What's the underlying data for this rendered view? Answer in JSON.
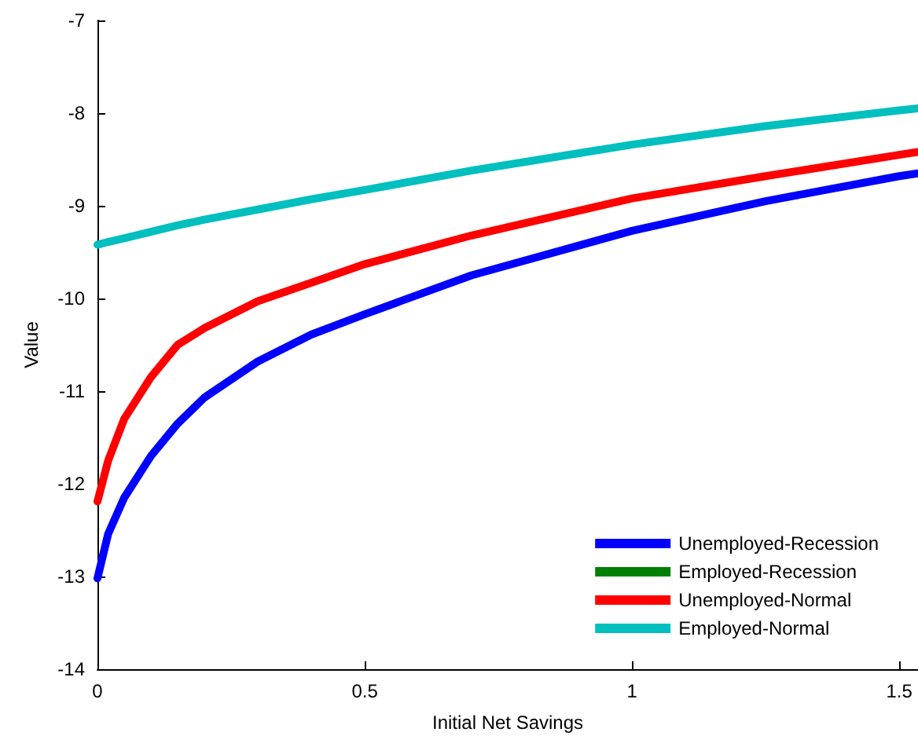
{
  "chart_data": {
    "type": "line",
    "xlabel": "Initial Net Savings",
    "ylabel": "Value",
    "x": [
      0,
      0.02,
      0.05,
      0.1,
      0.15,
      0.2,
      0.3,
      0.4,
      0.5,
      0.7,
      1.0,
      1.25,
      1.5,
      1.535
    ],
    "series": [
      {
        "name": "Unemployed-Recession",
        "color": "#0000ff",
        "values": [
          -13.02,
          -12.54,
          -12.15,
          -11.7,
          -11.35,
          -11.07,
          -10.68,
          -10.39,
          -10.17,
          -9.75,
          -9.27,
          -8.95,
          -8.68,
          -8.65
        ]
      },
      {
        "name": "Employed-Recession",
        "color": "#008000",
        "values": [
          null,
          null,
          null,
          null,
          null,
          null,
          null,
          null,
          null,
          null,
          null,
          null,
          null,
          null
        ]
      },
      {
        "name": "Unemployed-Normal",
        "color": "#ff0000",
        "values": [
          -12.19,
          -11.75,
          -11.3,
          -10.85,
          -10.5,
          -10.32,
          -10.03,
          -9.83,
          -9.63,
          -9.32,
          -8.92,
          -8.68,
          -8.45,
          -8.42
        ]
      },
      {
        "name": "Employed-Normal",
        "color": "#00bfbf",
        "values": [
          -9.42,
          -9.39,
          -9.35,
          -9.28,
          -9.21,
          -9.15,
          -9.04,
          -8.93,
          -8.83,
          -8.62,
          -8.34,
          -8.14,
          -7.97,
          -7.95
        ]
      }
    ],
    "xlim": [
      0,
      1.535
    ],
    "xticks": [
      0,
      0.5,
      1,
      1.5
    ],
    "ylim": [
      -14,
      -7
    ],
    "yticks": [
      -14,
      -13,
      -12,
      -11,
      -10,
      -9,
      -8,
      -7
    ],
    "grid": false,
    "legend": "bottom right",
    "marker": "none",
    "line_style": "solid"
  }
}
